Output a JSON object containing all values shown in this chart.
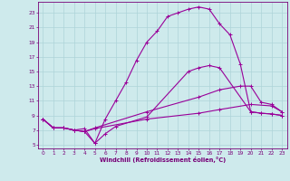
{
  "background_color": "#ceeaec",
  "grid_color": "#aed4d8",
  "line_color": "#990099",
  "xlabel": "Windchill (Refroidissement éolien,°C)",
  "xlabel_color": "#770077",
  "tick_color": "#770077",
  "xlim": [
    -0.5,
    23.5
  ],
  "ylim": [
    4.5,
    24.5
  ],
  "yticks": [
    5,
    7,
    9,
    11,
    13,
    15,
    17,
    19,
    21,
    23
  ],
  "xticks": [
    0,
    1,
    2,
    3,
    4,
    5,
    6,
    7,
    8,
    9,
    10,
    11,
    12,
    13,
    14,
    15,
    16,
    17,
    18,
    19,
    20,
    21,
    22,
    23
  ],
  "curve1_x": [
    0,
    1,
    2,
    3,
    4,
    5,
    6,
    7,
    8,
    9,
    10,
    11,
    12,
    13,
    14,
    15,
    16,
    17,
    18,
    19,
    20,
    21,
    22,
    23
  ],
  "curve1_y": [
    8.5,
    7.3,
    7.3,
    7.0,
    6.8,
    5.2,
    8.5,
    11.0,
    13.5,
    16.5,
    19.0,
    20.5,
    22.5,
    23.0,
    23.5,
    23.8,
    23.5,
    21.5,
    20.0,
    16.0,
    9.5,
    9.3,
    9.2,
    9.0
  ],
  "curve2_x": [
    0,
    1,
    2,
    3,
    4,
    5,
    10,
    15,
    17,
    19,
    20,
    21,
    22,
    23
  ],
  "curve2_y": [
    8.5,
    7.3,
    7.3,
    7.0,
    6.8,
    7.3,
    9.5,
    11.5,
    12.5,
    13.0,
    13.0,
    10.8,
    10.5,
    9.5
  ],
  "curve3_x": [
    0,
    1,
    2,
    3,
    4,
    5,
    10,
    15,
    17,
    20,
    22,
    23
  ],
  "curve3_y": [
    8.5,
    7.3,
    7.3,
    7.0,
    6.8,
    7.2,
    8.5,
    9.3,
    9.8,
    10.5,
    10.3,
    9.5
  ],
  "curve4_x": [
    0,
    1,
    2,
    3,
    4,
    5,
    6,
    7,
    10,
    14,
    15,
    16,
    17,
    20,
    21,
    22,
    23
  ],
  "curve4_y": [
    8.5,
    7.3,
    7.3,
    7.0,
    7.2,
    5.2,
    6.5,
    7.5,
    8.8,
    15.0,
    15.5,
    15.8,
    15.5,
    9.5,
    9.3,
    9.2,
    9.0
  ]
}
